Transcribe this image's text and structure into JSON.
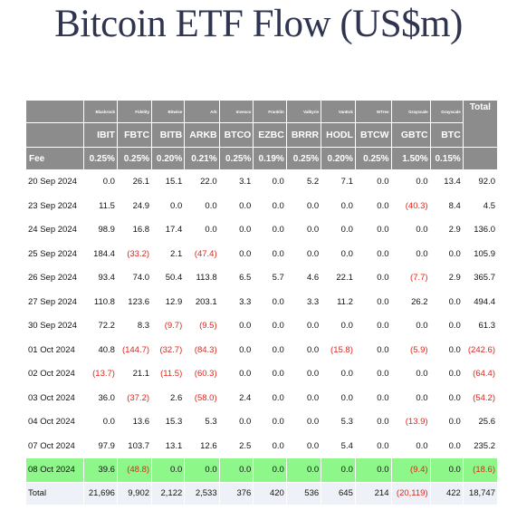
{
  "title": "Bitcoin ETF Flow (US$m)",
  "issuers": [
    "Blackrock",
    "Fidelity",
    "Bitwise",
    "Ark",
    "Invesco",
    "Franklin",
    "Valkyrie",
    "VanEck",
    "WTree",
    "Grayscale",
    "Grayscale"
  ],
  "total_header": "Total",
  "tickers": [
    "IBIT",
    "FBTC",
    "BITB",
    "ARKB",
    "BTCO",
    "EZBC",
    "BRRR",
    "HODL",
    "BTCW",
    "GBTC",
    "BTC"
  ],
  "fee": {
    "label": "Fee",
    "values": [
      "0.25%",
      "0.25%",
      "0.20%",
      "0.21%",
      "0.25%",
      "0.19%",
      "0.25%",
      "0.20%",
      "0.25%",
      "1.50%",
      "0.15%"
    ]
  },
  "rows": [
    {
      "date": "20 Sep 2024",
      "values": [
        "0.0",
        "26.1",
        "15.1",
        "22.0",
        "3.1",
        "0.0",
        "5.2",
        "7.1",
        "0.0",
        "0.0",
        "13.4"
      ],
      "total": "92.0"
    },
    {
      "date": "23 Sep 2024",
      "values": [
        "11.5",
        "24.9",
        "0.0",
        "0.0",
        "0.0",
        "0.0",
        "0.0",
        "0.0",
        "0.0",
        "(40.3)",
        "8.4"
      ],
      "total": "4.5"
    },
    {
      "date": "24 Sep 2024",
      "values": [
        "98.9",
        "16.8",
        "17.4",
        "0.0",
        "0.0",
        "0.0",
        "0.0",
        "0.0",
        "0.0",
        "0.0",
        "2.9"
      ],
      "total": "136.0"
    },
    {
      "date": "25 Sep 2024",
      "values": [
        "184.4",
        "(33.2)",
        "2.1",
        "(47.4)",
        "0.0",
        "0.0",
        "0.0",
        "0.0",
        "0.0",
        "0.0",
        "0.0"
      ],
      "total": "105.9"
    },
    {
      "date": "26 Sep 2024",
      "values": [
        "93.4",
        "74.0",
        "50.4",
        "113.8",
        "6.5",
        "5.7",
        "4.6",
        "22.1",
        "0.0",
        "(7.7)",
        "2.9"
      ],
      "total": "365.7"
    },
    {
      "date": "27 Sep 2024",
      "values": [
        "110.8",
        "123.6",
        "12.9",
        "203.1",
        "3.3",
        "0.0",
        "3.3",
        "11.2",
        "0.0",
        "26.2",
        "0.0"
      ],
      "total": "494.4"
    },
    {
      "date": "30 Sep 2024",
      "values": [
        "72.2",
        "8.3",
        "(9.7)",
        "(9.5)",
        "0.0",
        "0.0",
        "0.0",
        "0.0",
        "0.0",
        "0.0",
        "0.0"
      ],
      "total": "61.3"
    },
    {
      "date": "01 Oct 2024",
      "values": [
        "40.8",
        "(144.7)",
        "(32.7)",
        "(84.3)",
        "0.0",
        "0.0",
        "0.0",
        "(15.8)",
        "0.0",
        "(5.9)",
        "0.0"
      ],
      "total": "(242.6)"
    },
    {
      "date": "02 Oct 2024",
      "values": [
        "(13.7)",
        "21.1",
        "(11.5)",
        "(60.3)",
        "0.0",
        "0.0",
        "0.0",
        "0.0",
        "0.0",
        "0.0",
        "0.0"
      ],
      "total": "(64.4)"
    },
    {
      "date": "03 Oct 2024",
      "values": [
        "36.0",
        "(37.2)",
        "2.6",
        "(58.0)",
        "2.4",
        "0.0",
        "0.0",
        "0.0",
        "0.0",
        "0.0",
        "0.0"
      ],
      "total": "(54.2)"
    },
    {
      "date": "04 Oct 2024",
      "values": [
        "0.0",
        "13.6",
        "15.3",
        "5.3",
        "0.0",
        "0.0",
        "0.0",
        "5.3",
        "0.0",
        "(13.9)",
        "0.0"
      ],
      "total": "25.6"
    },
    {
      "date": "07 Oct 2024",
      "values": [
        "97.9",
        "103.7",
        "13.1",
        "12.6",
        "2.5",
        "0.0",
        "0.0",
        "5.4",
        "0.0",
        "0.0",
        "0.0"
      ],
      "total": "235.2"
    },
    {
      "date": "08 Oct 2024",
      "values": [
        "39.6",
        "(48.8)",
        "0.0",
        "0.0",
        "0.0",
        "0.0",
        "0.0",
        "0.0",
        "0.0",
        "(9.4)",
        "0.0"
      ],
      "total": "(18.6)",
      "highlight": true
    }
  ],
  "totals": {
    "label": "Total",
    "values": [
      "21,696",
      "9,902",
      "2,122",
      "2,533",
      "376",
      "420",
      "536",
      "645",
      "214",
      "(20,119)",
      "422"
    ],
    "total": "18,747"
  },
  "colors": {
    "header_bg": "#8c8c8c",
    "highlight": "#8df78a",
    "negative": "#e0241b",
    "total_row_bg": "#eef1f8",
    "title": "#2f3450"
  }
}
